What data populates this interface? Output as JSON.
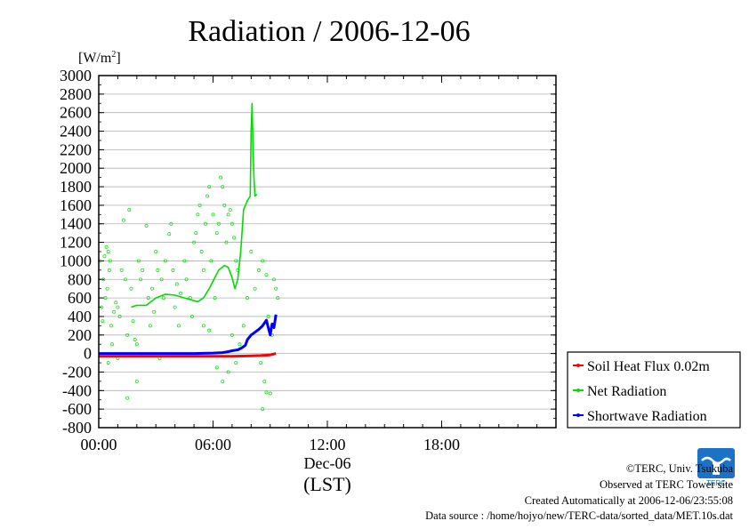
{
  "chart_data": {
    "type": "line",
    "title": "Radiation / 2006-12-06",
    "ylabel": "[W/m2]",
    "ylabel_unit_base": "[W/m",
    "ylabel_unit_sup": "2",
    "ylabel_unit_close": "]",
    "xlabel": "(LST)",
    "x_date_label": "Dec-06",
    "ylim": [
      -800,
      3000
    ],
    "yticks": [
      -800,
      -600,
      -400,
      -200,
      0,
      200,
      400,
      600,
      800,
      1000,
      1200,
      1400,
      1600,
      1800,
      2000,
      2200,
      2400,
      2600,
      2800,
      3000
    ],
    "xlim_hours": [
      0,
      24
    ],
    "xticks": [
      {
        "hour": 0,
        "label": "00:00"
      },
      {
        "hour": 6,
        "label": "06:00"
      },
      {
        "hour": 12,
        "label": "12:00"
      },
      {
        "hour": 18,
        "label": "18:00"
      }
    ],
    "grid": true,
    "legend_position": "right",
    "series": [
      {
        "name": "Soil Heat Flux 0.02m",
        "color": "#ff0000",
        "x": [
          0,
          1,
          2,
          3,
          4,
          5,
          6,
          7,
          7.5,
          8,
          8.5,
          9,
          9.3
        ],
        "y": [
          -30,
          -30,
          -30,
          -30,
          -30,
          -30,
          -30,
          -30,
          -28,
          -25,
          -22,
          -15,
          0
        ]
      },
      {
        "name": "Net Radiation",
        "color": "#00dd00",
        "x": [
          1.7,
          2.0,
          2.5,
          3.0,
          3.5,
          4.0,
          4.5,
          5.0,
          5.2,
          5.5,
          5.8,
          6.0,
          6.3,
          6.6,
          6.8,
          7.0,
          7.15,
          7.3,
          7.45,
          7.6,
          7.8,
          7.95,
          8.0,
          8.05,
          8.1,
          8.15,
          8.2,
          8.3
        ],
        "y": [
          500,
          520,
          520,
          600,
          640,
          630,
          600,
          570,
          560,
          600,
          700,
          780,
          900,
          950,
          930,
          820,
          700,
          800,
          1100,
          1550,
          1650,
          1700,
          2400,
          2700,
          2200,
          1900,
          1700,
          1720
        ],
        "scatter": [
          [
            0.05,
            1000
          ],
          [
            0.15,
            500
          ],
          [
            0.25,
            800
          ],
          [
            0.3,
            1050
          ],
          [
            0.4,
            1150
          ],
          [
            0.45,
            700
          ],
          [
            0.55,
            900
          ],
          [
            0.6,
            1000
          ],
          [
            0.2,
            350
          ],
          [
            0.35,
            600
          ],
          [
            0.5,
            1100
          ],
          [
            0.65,
            300
          ],
          [
            0.7,
            100
          ],
          [
            0.8,
            450
          ],
          [
            0.9,
            550
          ],
          [
            1.0,
            500
          ],
          [
            1.1,
            400
          ],
          [
            1.2,
            900
          ],
          [
            1.3,
            1440
          ],
          [
            1.4,
            800
          ],
          [
            1.5,
            200
          ],
          [
            1.6,
            1550
          ],
          [
            1.7,
            700
          ],
          [
            1.8,
            350
          ],
          [
            1.9,
            150
          ],
          [
            2.0,
            100
          ],
          [
            2.1,
            1000
          ],
          [
            2.2,
            800
          ],
          [
            2.3,
            900
          ],
          [
            2.5,
            1380
          ],
          [
            2.6,
            600
          ],
          [
            2.7,
            300
          ],
          [
            2.8,
            700
          ],
          [
            2.9,
            450
          ],
          [
            3.0,
            1100
          ],
          [
            3.1,
            900
          ],
          [
            3.3,
            800
          ],
          [
            3.4,
            600
          ],
          [
            3.5,
            1000
          ],
          [
            3.7,
            1290
          ],
          [
            3.8,
            1400
          ],
          [
            3.9,
            900
          ],
          [
            4.0,
            500
          ],
          [
            4.1,
            750
          ],
          [
            4.2,
            300
          ],
          [
            4.3,
            650
          ],
          [
            4.5,
            1000
          ],
          [
            4.6,
            800
          ],
          [
            4.8,
            600
          ],
          [
            4.9,
            400
          ],
          [
            5.0,
            1200
          ],
          [
            5.1,
            1300
          ],
          [
            5.2,
            1500
          ],
          [
            5.3,
            1600
          ],
          [
            5.4,
            1100
          ],
          [
            5.5,
            900
          ],
          [
            5.6,
            1400
          ],
          [
            5.7,
            1700
          ],
          [
            5.8,
            1800
          ],
          [
            5.9,
            1000
          ],
          [
            6.0,
            1500
          ],
          [
            6.1,
            600
          ],
          [
            6.2,
            1300
          ],
          [
            6.3,
            1400
          ],
          [
            6.4,
            1900
          ],
          [
            6.5,
            1800
          ],
          [
            6.6,
            1600
          ],
          [
            6.7,
            1200
          ],
          [
            6.8,
            1500
          ],
          [
            6.9,
            1550
          ],
          [
            7.0,
            1400
          ],
          [
            7.1,
            1250
          ],
          [
            7.2,
            1000
          ],
          [
            7.3,
            900
          ],
          [
            5.5,
            300
          ],
          [
            5.8,
            250
          ],
          [
            6.2,
            -150
          ],
          [
            6.5,
            -300
          ],
          [
            6.8,
            -200
          ],
          [
            7.0,
            200
          ],
          [
            7.2,
            -100
          ],
          [
            7.4,
            100
          ],
          [
            7.6,
            300
          ],
          [
            7.8,
            600
          ],
          [
            8.0,
            1100
          ],
          [
            8.2,
            700
          ],
          [
            8.4,
            900
          ],
          [
            8.6,
            1000
          ],
          [
            8.8,
            850
          ],
          [
            8.9,
            400
          ],
          [
            8.5,
            -100
          ],
          [
            8.7,
            -300
          ],
          [
            8.8,
            -420
          ],
          [
            9.0,
            -430
          ],
          [
            8.6,
            -600
          ],
          [
            9.1,
            200
          ],
          [
            9.2,
            800
          ],
          [
            9.3,
            700
          ],
          [
            9.4,
            600
          ],
          [
            1.5,
            -480
          ],
          [
            2.0,
            -300
          ],
          [
            0.5,
            -100
          ],
          [
            1.0,
            -50
          ],
          [
            3.2,
            -50
          ]
        ]
      },
      {
        "name": "Shortwave Radiation",
        "color": "#0000ff",
        "x": [
          0,
          1,
          2,
          3,
          4,
          5,
          6,
          6.5,
          6.8,
          7.0,
          7.3,
          7.5,
          7.7,
          7.8,
          8.0,
          8.2,
          8.4,
          8.6,
          8.8,
          8.9,
          9.0,
          9.1,
          9.2,
          9.3
        ],
        "y": [
          0,
          0,
          0,
          0,
          0,
          0,
          5,
          10,
          20,
          30,
          40,
          60,
          90,
          150,
          200,
          230,
          260,
          300,
          360,
          280,
          200,
          320,
          280,
          420
        ]
      }
    ]
  },
  "footer": {
    "logo_text": "TERC",
    "copyright": "©TERC, Univ. Tsukuba",
    "observed": "Observed at TERC Tower site",
    "created": "Created Automatically at 2006-12-06/23:55:08",
    "source": "Data source : /home/hojyo/new/TERC-data/sorted_data/MET.10s.dat"
  }
}
